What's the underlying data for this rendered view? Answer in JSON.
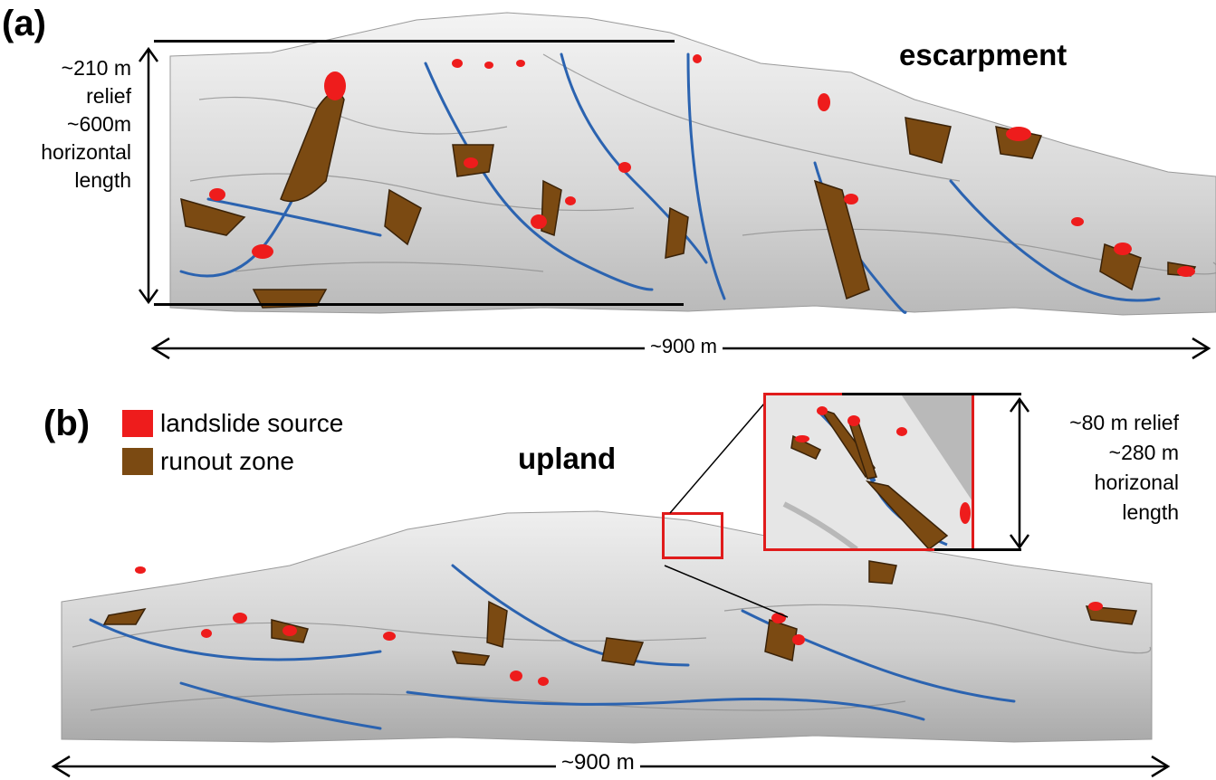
{
  "panel_a": {
    "label": "(a)",
    "region_label": "escarpment",
    "relief_label": "~210 m",
    "relief_word": "relief",
    "horizontal_value": "~600m",
    "horizontal_word": "horizontal",
    "length_word": "length",
    "width_label": "~900 m"
  },
  "panel_b": {
    "label": "(b)",
    "region_label": "upland",
    "inset_relief_label": "~80 m relief",
    "inset_horizontal_value": "~280 m",
    "inset_horizontal_word": "horizonal",
    "inset_length_word": "length",
    "width_label": "~900 m"
  },
  "legend": {
    "items": [
      {
        "label": "landslide source",
        "color": "#ee1c1c"
      },
      {
        "label": "runout zone",
        "color": "#7b4a12"
      }
    ]
  },
  "colors": {
    "source": "#ee1c1c",
    "runout": "#7b4a12",
    "channel": "#2b63b0",
    "inset_frame": "#e01b1b"
  }
}
